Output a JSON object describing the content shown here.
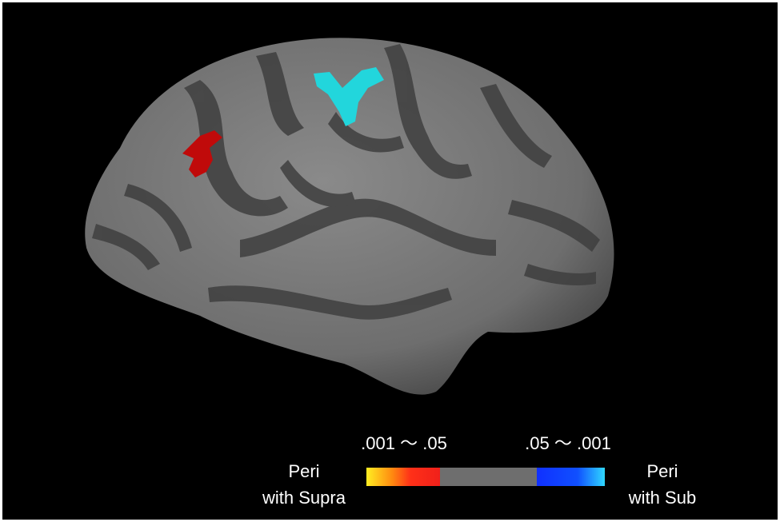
{
  "colorbar": {
    "left_range": ".001 〜 .05",
    "right_range": ".05 〜 .001"
  },
  "labels": {
    "left": [
      "Peri",
      "with Supra"
    ],
    "right": [
      "Peri",
      "with Sub"
    ]
  }
}
